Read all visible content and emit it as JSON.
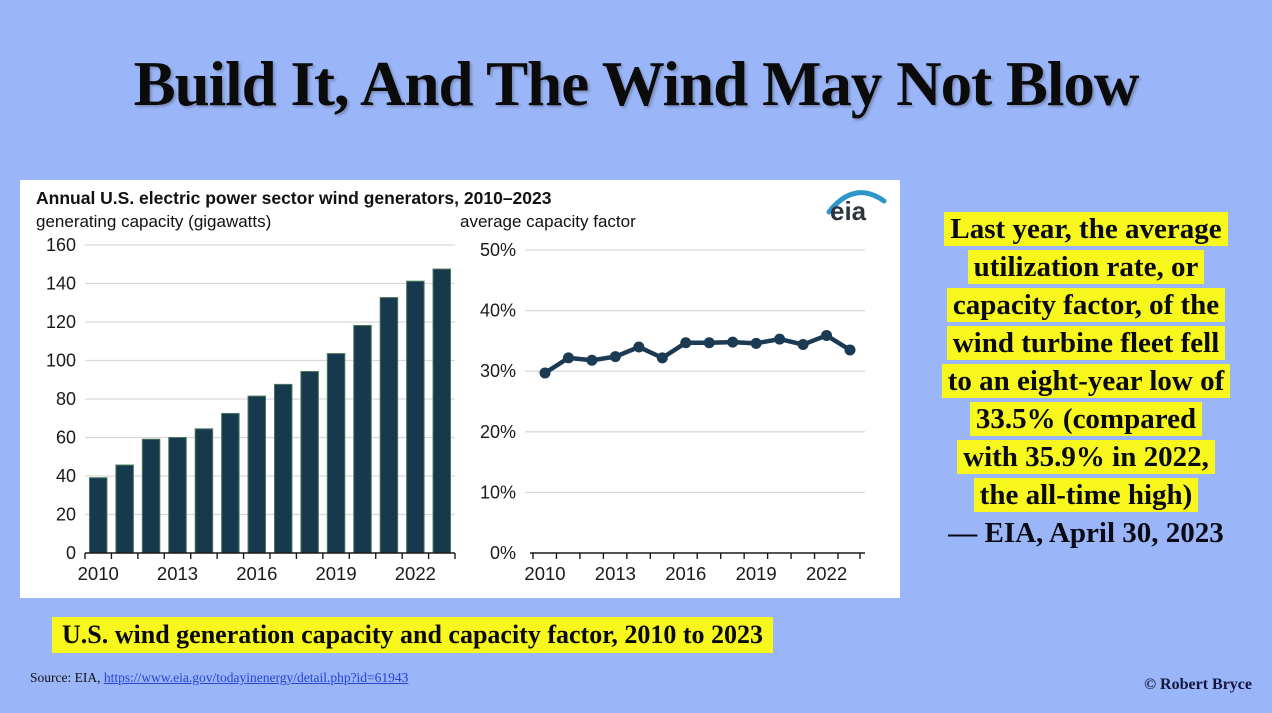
{
  "title": "Build It, And The Wind May Not Blow",
  "chart_panel": {
    "header": "Annual U.S. electric power sector wind generators, 2010–2023",
    "left_axis_title": "generating capacity (gigawatts)",
    "right_axis_title": "average capacity factor",
    "logo_text": "eia"
  },
  "chart_data": [
    {
      "type": "bar",
      "title": "generating capacity (gigawatts)",
      "categories": [
        2010,
        2011,
        2012,
        2013,
        2014,
        2015,
        2016,
        2017,
        2018,
        2019,
        2020,
        2021,
        2022,
        2023
      ],
      "values": [
        39.1,
        45.7,
        59.1,
        60.0,
        64.5,
        72.5,
        81.5,
        87.6,
        94.3,
        103.6,
        118.2,
        132.7,
        141.2,
        147.5
      ],
      "ylim": [
        0,
        160
      ],
      "ytick_step": 20,
      "xtick_labels": [
        2010,
        2013,
        2016,
        2019,
        2022
      ],
      "grid": true,
      "legend": "none"
    },
    {
      "type": "line",
      "title": "average capacity factor",
      "categories": [
        2010,
        2011,
        2012,
        2013,
        2014,
        2015,
        2016,
        2017,
        2018,
        2019,
        2020,
        2021,
        2022,
        2023
      ],
      "values": [
        29.7,
        32.2,
        31.8,
        32.4,
        34.0,
        32.2,
        34.7,
        34.7,
        34.8,
        34.6,
        35.3,
        34.4,
        35.9,
        33.5
      ],
      "unit": "%",
      "ylim": [
        0,
        50
      ],
      "ytick_step": 10,
      "xtick_labels": [
        2010,
        2013,
        2016,
        2019,
        2022
      ],
      "grid": true,
      "legend": "none"
    }
  ],
  "quote": {
    "highlight_lines": [
      "Last year, the average",
      "utilization rate, or",
      "capacity factor, of the",
      "wind turbine fleet fell",
      "to an eight-year low of",
      "33.5% (compared",
      "with 35.9% in 2022,",
      "the all-time high)"
    ],
    "attribution": "— EIA, April 30, 2023"
  },
  "caption": "U.S. wind generation capacity and capacity factor, 2010 to 2023",
  "source": {
    "prefix": "Source: EIA, ",
    "link_text": "https://www.eia.gov/todayinenergy/detail.php?id=61943"
  },
  "copyright": "© Robert Bryce",
  "colors": {
    "background": "#9ab6f8",
    "panel": "#ffffff",
    "bar_fill": "#17394e",
    "bar_stroke": "#4d7a5e",
    "line": "#1b3a54",
    "gridline": "#d9d9d9",
    "axis": "#1a1a1a",
    "highlight": "#f7f71e",
    "link": "#2743d0",
    "logo_swoosh": "#2e96c8"
  }
}
